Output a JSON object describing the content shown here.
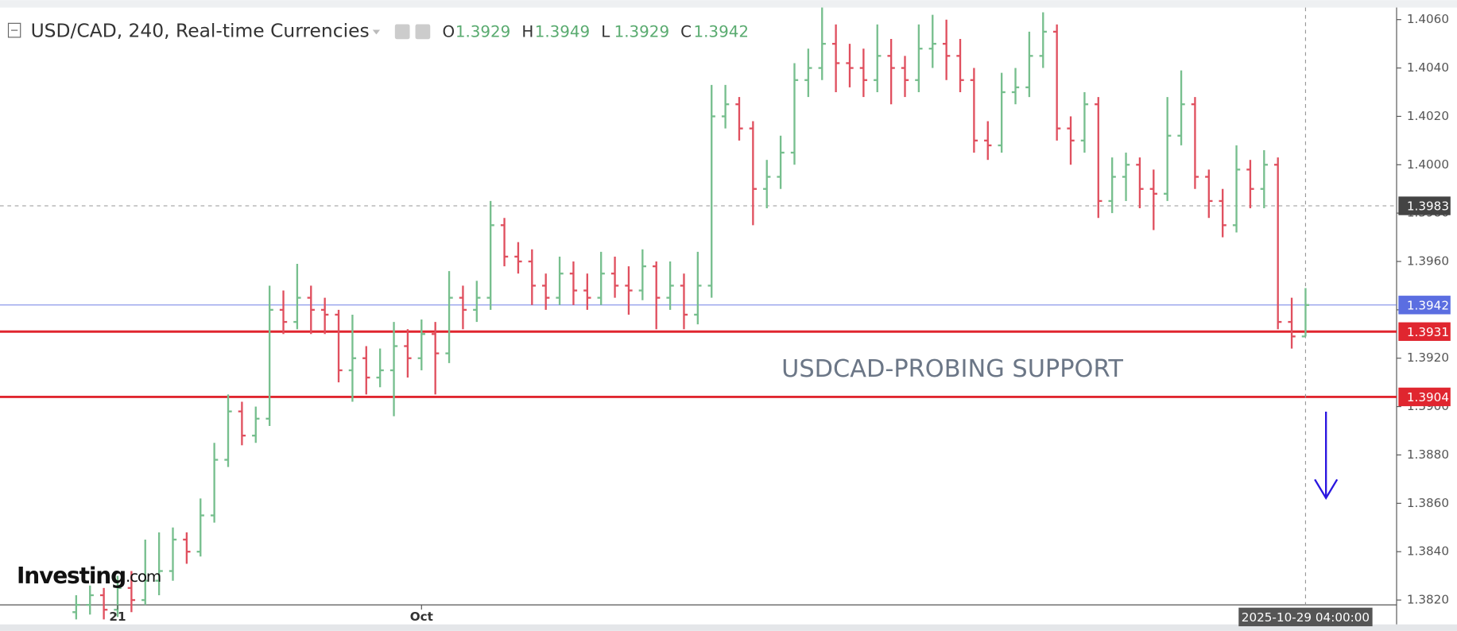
{
  "header": {
    "title": "USD/CAD, 240, Real-time Currencies",
    "ohlc": [
      {
        "label": "O",
        "value": 1.3929
      },
      {
        "label": "H",
        "value": 1.3949
      },
      {
        "label": "L",
        "value": 1.3929
      },
      {
        "label": "C",
        "value": 1.3942
      }
    ]
  },
  "chart_data": {
    "type": "ohlc",
    "open": [
      1.3815,
      1.3818,
      1.3822,
      1.3816,
      1.3825,
      1.382,
      1.3828,
      1.3832,
      1.3845,
      1.384,
      1.3855,
      1.3878,
      1.3898,
      1.3888,
      1.3895,
      1.394,
      1.3935,
      1.3945,
      1.394,
      1.3938,
      1.3915,
      1.392,
      1.3912,
      1.3915,
      1.3925,
      1.392,
      1.393,
      1.3922,
      1.3945,
      1.394,
      1.3945,
      1.3975,
      1.3962,
      1.396,
      1.395,
      1.3945,
      1.3955,
      1.3948,
      1.3945,
      1.3955,
      1.395,
      1.3948,
      1.3958,
      1.3945,
      1.395,
      1.3938,
      1.395,
      1.402,
      1.4025,
      1.4015,
      1.399,
      1.3995,
      1.4005,
      1.4035,
      1.404,
      1.405,
      1.4042,
      1.404,
      1.4035,
      1.4045,
      1.404,
      1.4035,
      1.4048,
      1.405,
      1.4045,
      1.4035,
      1.401,
      1.4008,
      1.403,
      1.4032,
      1.4045,
      1.4055,
      1.4015,
      1.401,
      1.4025,
      1.3985,
      1.3995,
      1.4,
      1.399,
      1.3988,
      1.4012,
      1.4025,
      1.3995,
      1.3985,
      1.3975,
      1.3998,
      1.399,
      1.4,
      1.3935,
      1.3929
    ],
    "high": [
      1.3822,
      1.3826,
      1.3825,
      1.383,
      1.3832,
      1.3845,
      1.3848,
      1.385,
      1.3848,
      1.3862,
      1.3885,
      1.3905,
      1.3902,
      1.39,
      1.395,
      1.3948,
      1.3959,
      1.395,
      1.3945,
      1.394,
      1.3938,
      1.3925,
      1.3924,
      1.3935,
      1.3932,
      1.3936,
      1.3935,
      1.3956,
      1.395,
      1.3952,
      1.3985,
      1.3978,
      1.3968,
      1.3965,
      1.3955,
      1.3962,
      1.396,
      1.3955,
      1.3964,
      1.3962,
      1.3958,
      1.3965,
      1.396,
      1.396,
      1.3955,
      1.3964,
      1.4033,
      1.4033,
      1.4028,
      1.4018,
      1.4002,
      1.4012,
      1.4042,
      1.4048,
      1.4065,
      1.4058,
      1.405,
      1.4048,
      1.4058,
      1.4052,
      1.4045,
      1.4058,
      1.4062,
      1.406,
      1.4052,
      1.404,
      1.4018,
      1.4038,
      1.404,
      1.4055,
      1.4063,
      1.4058,
      1.402,
      1.403,
      1.4028,
      1.4003,
      1.4005,
      1.4003,
      1.3998,
      1.4028,
      1.4039,
      1.4028,
      1.3998,
      1.399,
      1.4008,
      1.4002,
      1.4006,
      1.4003,
      1.3945,
      1.3949
    ],
    "low": [
      1.3812,
      1.3814,
      1.3812,
      1.3813,
      1.3815,
      1.3818,
      1.3822,
      1.3828,
      1.3835,
      1.3838,
      1.3852,
      1.3875,
      1.3884,
      1.3885,
      1.3892,
      1.393,
      1.3932,
      1.393,
      1.393,
      1.391,
      1.3902,
      1.3905,
      1.3908,
      1.3896,
      1.3912,
      1.3915,
      1.3905,
      1.3918,
      1.3932,
      1.3935,
      1.394,
      1.3958,
      1.3955,
      1.3942,
      1.394,
      1.3942,
      1.3942,
      1.394,
      1.3942,
      1.3945,
      1.3938,
      1.3944,
      1.3932,
      1.394,
      1.3932,
      1.3934,
      1.3945,
      1.4015,
      1.401,
      1.3975,
      1.3982,
      1.399,
      1.4,
      1.4028,
      1.4035,
      1.403,
      1.4032,
      1.4028,
      1.403,
      1.4025,
      1.4028,
      1.403,
      1.404,
      1.4035,
      1.403,
      1.4005,
      1.4002,
      1.4005,
      1.4025,
      1.4028,
      1.404,
      1.401,
      1.4,
      1.4005,
      1.3978,
      1.398,
      1.3985,
      1.3982,
      1.3973,
      1.3985,
      1.4008,
      1.399,
      1.3978,
      1.397,
      1.3972,
      1.3982,
      1.3982,
      1.3932,
      1.3924,
      1.3929
    ],
    "close": [
      1.3818,
      1.3822,
      1.3816,
      1.3825,
      1.382,
      1.3828,
      1.3832,
      1.3845,
      1.384,
      1.3855,
      1.3878,
      1.3898,
      1.3888,
      1.3895,
      1.394,
      1.3935,
      1.3945,
      1.394,
      1.3938,
      1.3915,
      1.392,
      1.3912,
      1.3915,
      1.3925,
      1.392,
      1.393,
      1.3922,
      1.3945,
      1.394,
      1.3945,
      1.3975,
      1.3962,
      1.396,
      1.395,
      1.3945,
      1.3955,
      1.3948,
      1.3945,
      1.3955,
      1.395,
      1.3948,
      1.3958,
      1.3945,
      1.395,
      1.3938,
      1.395,
      1.402,
      1.4025,
      1.4015,
      1.399,
      1.3995,
      1.4005,
      1.4035,
      1.404,
      1.405,
      1.4042,
      1.404,
      1.4035,
      1.4045,
      1.404,
      1.4035,
      1.4048,
      1.405,
      1.4045,
      1.4035,
      1.401,
      1.4008,
      1.403,
      1.4032,
      1.4045,
      1.4055,
      1.4015,
      1.401,
      1.4025,
      1.3985,
      1.3995,
      1.4,
      1.399,
      1.3988,
      1.4012,
      1.4025,
      1.3995,
      1.3985,
      1.3975,
      1.3998,
      1.399,
      1.4,
      1.3935,
      1.3929,
      1.3942
    ],
    "up_color": "#77bf8e",
    "down_color": "#e0505f",
    "ylim": [
      1.3818,
      1.4065
    ],
    "yticks": [
      {
        "value": 1.406,
        "label": "1.4060"
      },
      {
        "value": 1.404,
        "label": "1.4040"
      },
      {
        "value": 1.402,
        "label": "1.4020"
      },
      {
        "value": 1.4,
        "label": "1.4000"
      },
      {
        "value": 1.398,
        "label": "1.3980"
      },
      {
        "value": 1.396,
        "label": "1.3960"
      },
      {
        "value": 1.394,
        "label": "1.3940"
      },
      {
        "value": 1.392,
        "label": "1.3920"
      },
      {
        "value": 1.39,
        "label": "1.3900"
      },
      {
        "value": 1.388,
        "label": "1.3880"
      },
      {
        "value": 1.386,
        "label": "1.3860"
      },
      {
        "value": 1.384,
        "label": "1.3840"
      },
      {
        "value": 1.382,
        "label": "1.3820"
      }
    ],
    "xticks": [
      {
        "value": 3,
        "label": "21"
      },
      {
        "value": 25,
        "label": "Oct"
      }
    ],
    "crosshair": {
      "x": 89,
      "label": "2025-10-29 04:00:00"
    },
    "lines": [
      {
        "value": 1.3983,
        "color": "#444444",
        "style": "dashed"
      },
      {
        "value": 1.3942,
        "color": "#5b6ee1",
        "style": "thin"
      },
      {
        "value": 1.3931,
        "color": "#e0262f",
        "style": "solid"
      },
      {
        "value": 1.3904,
        "color": "#e0262f",
        "style": "solid"
      }
    ],
    "annotation": "USDCAD-PROBING SUPPORT",
    "watermark": {
      "brand": "Investing",
      "suffix": ".com"
    }
  }
}
